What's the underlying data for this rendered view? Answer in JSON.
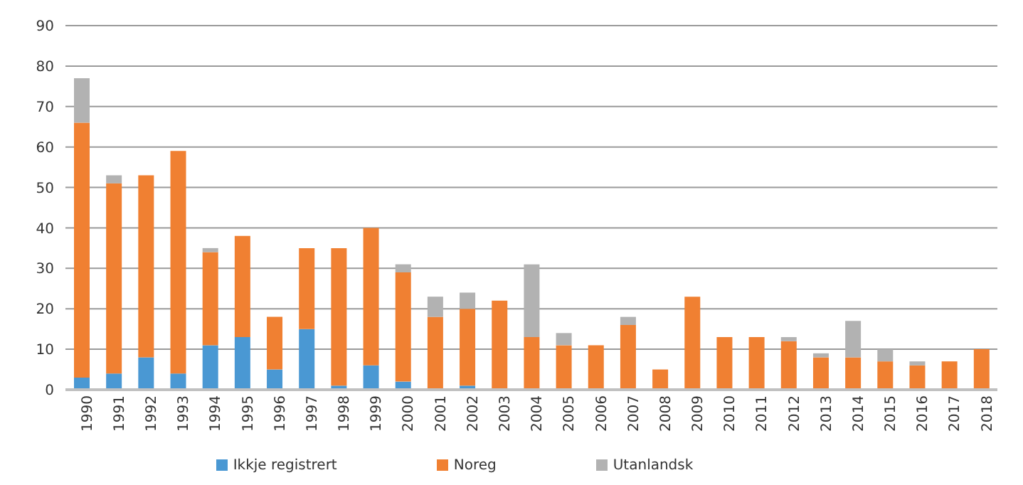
{
  "chart_data": {
    "type": "bar",
    "stacked": true,
    "categories": [
      "1990",
      "1991",
      "1992",
      "1993",
      "1994",
      "1995",
      "1996",
      "1997",
      "1998",
      "1999",
      "2000",
      "2001",
      "2002",
      "2003",
      "2004",
      "2005",
      "2006",
      "2007",
      "2008",
      "2009",
      "2010",
      "2011",
      "2012",
      "2013",
      "2014",
      "2015",
      "2016",
      "2017",
      "2018"
    ],
    "series": [
      {
        "name": "Ikkje registrert",
        "color": "#4a98d3",
        "values": [
          3,
          4,
          8,
          4,
          11,
          13,
          5,
          15,
          1,
          6,
          2,
          0,
          1,
          0,
          0,
          0,
          0,
          0,
          0,
          0,
          0,
          0,
          0,
          0,
          0,
          0,
          0,
          0,
          0
        ]
      },
      {
        "name": "Noreg",
        "color": "#f08032",
        "values": [
          63,
          47,
          45,
          55,
          23,
          25,
          13,
          20,
          34,
          34,
          27,
          18,
          19,
          22,
          13,
          11,
          11,
          16,
          5,
          23,
          13,
          13,
          12,
          8,
          8,
          7,
          6,
          7,
          10
        ]
      },
      {
        "name": "Utanlandsk",
        "color": "#b2b2b2",
        "values": [
          11,
          2,
          0,
          0,
          1,
          0,
          0,
          0,
          0,
          0,
          2,
          5,
          4,
          0,
          18,
          3,
          0,
          2,
          0,
          0,
          0,
          0,
          1,
          1,
          9,
          3,
          1,
          0,
          0
        ]
      }
    ],
    "ylim": [
      0,
      90
    ],
    "yticks": [
      0,
      10,
      20,
      30,
      40,
      50,
      60,
      70,
      80,
      90
    ],
    "grid": "y",
    "legend": "bottom"
  }
}
